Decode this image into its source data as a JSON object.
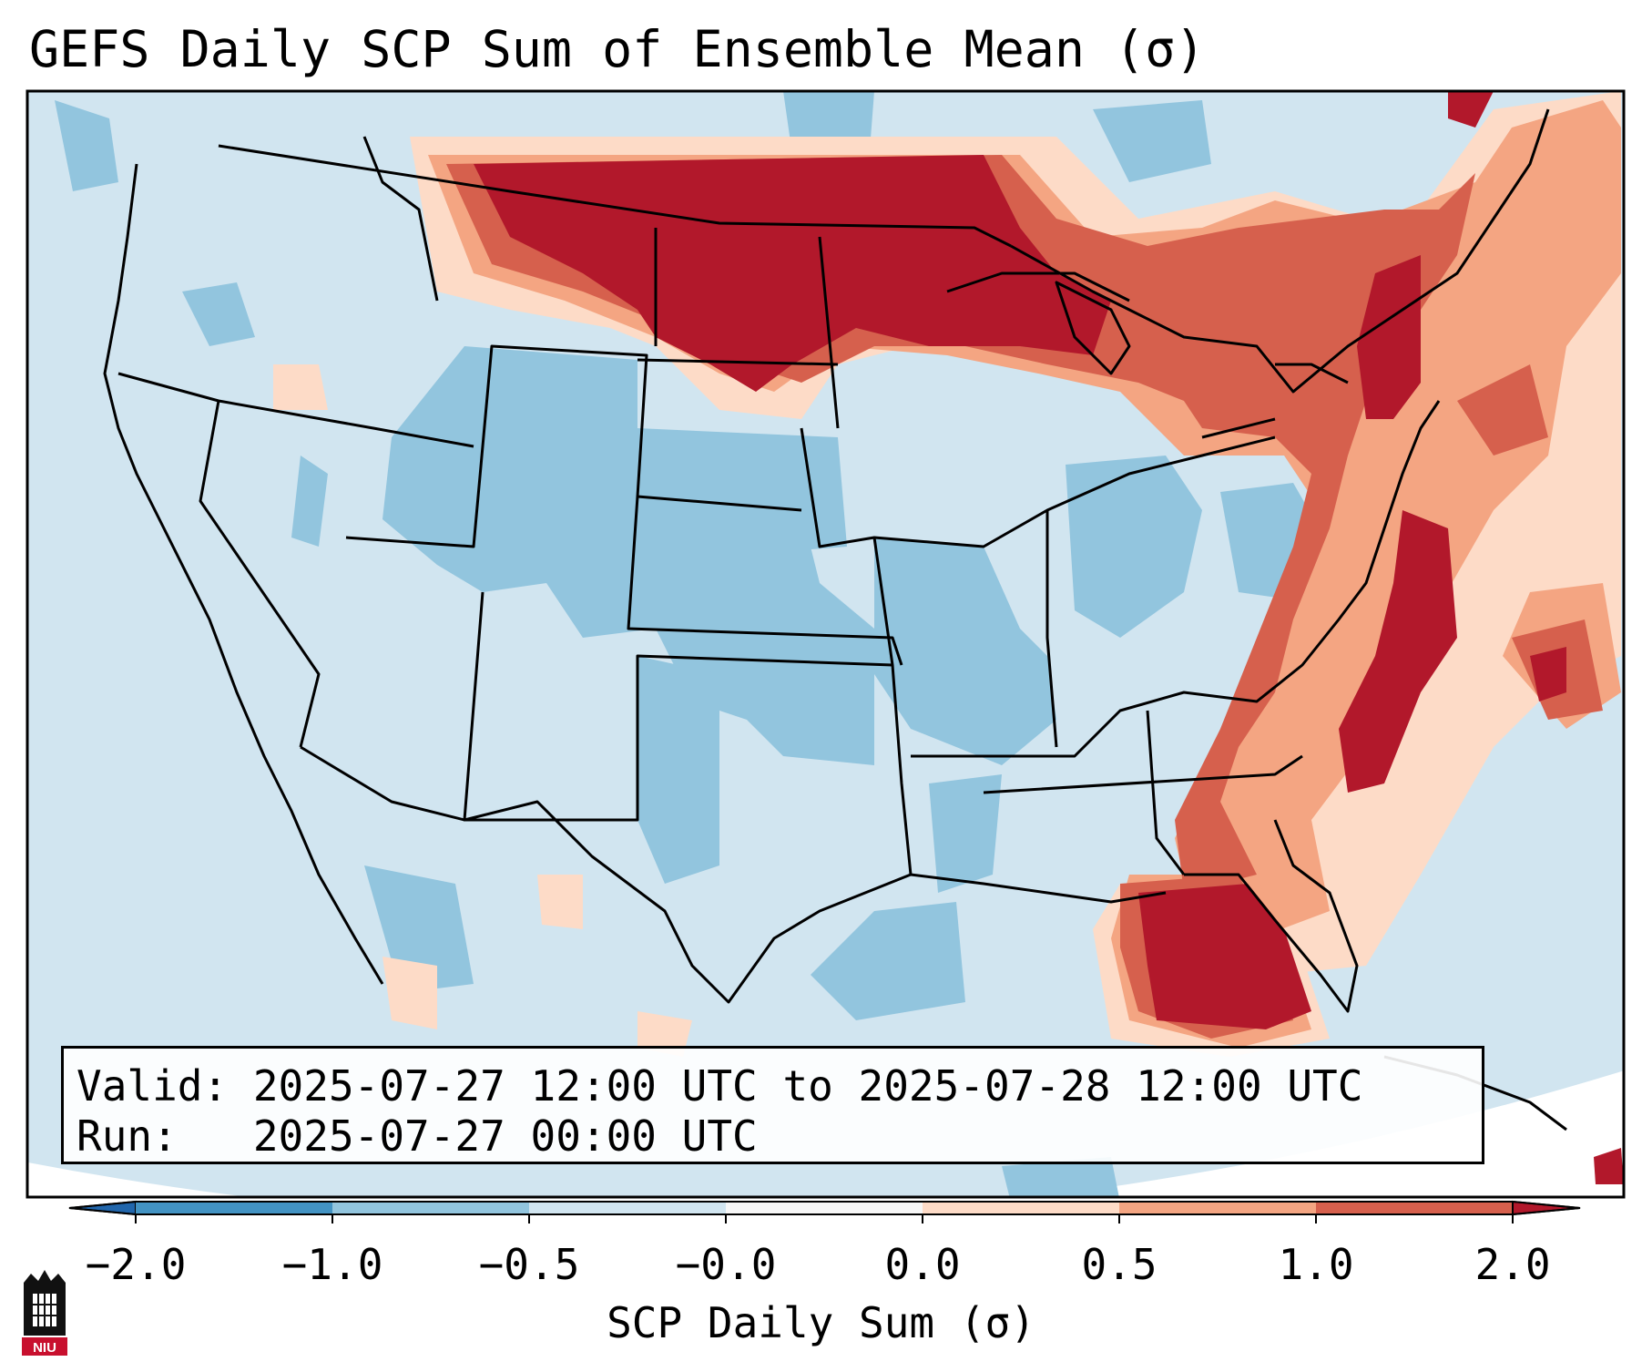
{
  "title": "GEFS Daily SCP Sum of Ensemble Mean (σ)",
  "info": {
    "valid_line": "Valid: 2025-07-27 12:00 UTC to 2025-07-28 12:00 UTC",
    "run_line": "Run:   2025-07-27 00:00 UTC"
  },
  "colorbar": {
    "label": "SCP Daily Sum (σ)",
    "ticks": [
      "−2.0",
      "−1.0",
      "−0.5",
      "−0.0",
      "0.0",
      "0.5",
      "1.0",
      "2.0"
    ],
    "colors": [
      "#4393c3",
      "#92c5de",
      "#d1e5f0",
      "#f7f7f7",
      "#fddbc7",
      "#f4a582",
      "#d6604d"
    ],
    "extend_low_color": "#2166ac",
    "extend_high_color": "#b2182b"
  },
  "map": {
    "region": "Continental United States",
    "high_areas": [
      "Northern Plains",
      "Upper Great Lakes",
      "Northeast",
      "Mid-Atlantic coast",
      "Florida",
      "Western Atlantic"
    ],
    "colors": {
      "background": "#d1e5f0",
      "low": "#92c5de",
      "mid_high": "#fddbc7",
      "high": "#f4a582",
      "higher": "#d6604d",
      "highest": "#b2182b"
    }
  },
  "logo": {
    "text": "NIU",
    "icon": "university-building-icon"
  }
}
